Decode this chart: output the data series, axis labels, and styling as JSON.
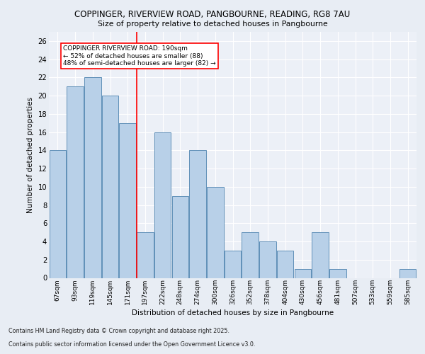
{
  "title1": "COPPINGER, RIVERVIEW ROAD, PANGBOURNE, READING, RG8 7AU",
  "title2": "Size of property relative to detached houses in Pangbourne",
  "xlabel": "Distribution of detached houses by size in Pangbourne",
  "ylabel": "Number of detached properties",
  "categories": [
    "67sqm",
    "93sqm",
    "119sqm",
    "145sqm",
    "171sqm",
    "197sqm",
    "222sqm",
    "248sqm",
    "274sqm",
    "300sqm",
    "326sqm",
    "352sqm",
    "378sqm",
    "404sqm",
    "430sqm",
    "456sqm",
    "481sqm",
    "507sqm",
    "533sqm",
    "559sqm",
    "585sqm"
  ],
  "values": [
    14,
    21,
    22,
    20,
    17,
    5,
    16,
    9,
    14,
    10,
    3,
    5,
    4,
    3,
    1,
    5,
    1,
    0,
    0,
    0,
    1
  ],
  "bar_color": "#b8d0e8",
  "bar_edgecolor": "#6090b8",
  "vline_color": "red",
  "vline_x": 4.5,
  "annotation_title": "COPPINGER RIVERVIEW ROAD: 190sqm",
  "annotation_line1": "← 52% of detached houses are smaller (88)",
  "annotation_line2": "48% of semi-detached houses are larger (82) →",
  "annotation_box_color": "white",
  "annotation_box_edgecolor": "red",
  "ylim": [
    0,
    27
  ],
  "yticks": [
    0,
    2,
    4,
    6,
    8,
    10,
    12,
    14,
    16,
    18,
    20,
    22,
    24,
    26
  ],
  "bg_color": "#e8edf4",
  "plot_bg_color": "#ecf0f7",
  "grid_color": "white",
  "footnote1": "Contains HM Land Registry data © Crown copyright and database right 2025.",
  "footnote2": "Contains public sector information licensed under the Open Government Licence v3.0."
}
